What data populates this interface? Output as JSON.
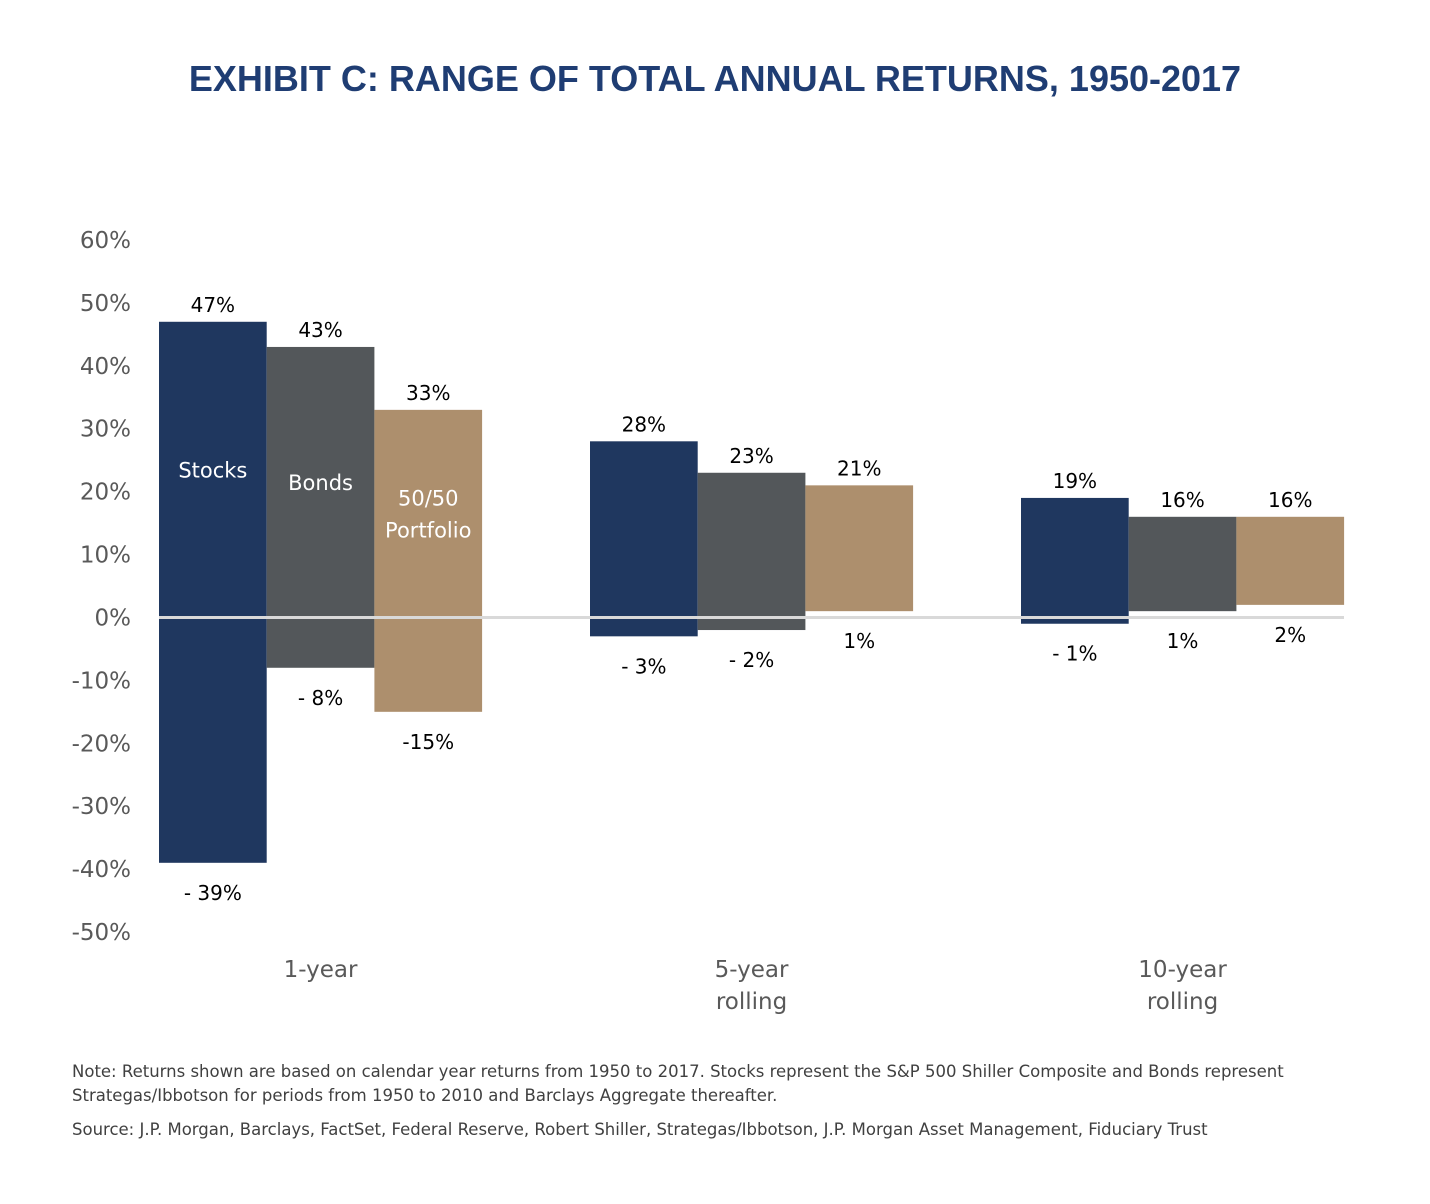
{
  "title": "EXHIBIT C: RANGE OF TOTAL ANNUAL RETURNS, 1950-2017",
  "chart_data": {
    "type": "bar",
    "subtype": "floating-range",
    "categories": [
      [
        "1-year"
      ],
      [
        "5-year",
        "rolling"
      ],
      [
        "10-year",
        "rolling"
      ]
    ],
    "series": [
      {
        "name": "Stocks",
        "color": "#1f375f",
        "high": [
          47,
          28,
          19
        ],
        "low": [
          -39,
          -3,
          -1
        ],
        "high_labels": [
          "47%",
          "28%",
          "19%"
        ],
        "low_labels": [
          "- 39%",
          "- 3%",
          "- 1%"
        ],
        "name_lines": [
          "Stocks"
        ]
      },
      {
        "name": "Bonds",
        "color": "#53575a",
        "high": [
          43,
          23,
          16
        ],
        "low": [
          -8,
          -2,
          1
        ],
        "high_labels": [
          "43%",
          "23%",
          "16%"
        ],
        "low_labels": [
          "- 8%",
          "- 2%",
          "1%"
        ],
        "name_lines": [
          "Bonds"
        ]
      },
      {
        "name": "50/50 Portfolio",
        "color": "#ad8f6d",
        "high": [
          33,
          21,
          16
        ],
        "low": [
          -15,
          1,
          2
        ],
        "high_labels": [
          "33%",
          "21%",
          "16%"
        ],
        "low_labels": [
          "-15%",
          "1%",
          "2%"
        ],
        "name_lines": [
          "50/50",
          "Portfolio"
        ]
      }
    ],
    "series_labels_in_category": 0,
    "ylim": [
      -50,
      60
    ],
    "yticks": [
      60,
      50,
      40,
      30,
      20,
      10,
      0,
      -10,
      -20,
      -30,
      -40,
      -50
    ],
    "ytick_labels": [
      "60%",
      "50%",
      "40%",
      "30%",
      "20%",
      "10%",
      "0%",
      "-10%",
      "-20%",
      "-30%",
      "-40%",
      "-50%"
    ],
    "grid": false,
    "zero_line_color": "#d9d9d9"
  },
  "notes": {
    "line1": "Note: Returns shown are based on calendar year returns from 1950 to 2017. Stocks represent the S&P 500 Shiller Composite and Bonds represent Strategas/Ibbotson for periods from 1950 to 2010 and Barclays Aggregate thereafter.",
    "line2": "Source: J.P. Morgan, Barclays, FactSet, Federal Reserve, Robert Shiller, Strategas/Ibbotson, J.P. Morgan Asset Management, Fiduciary Trust"
  }
}
